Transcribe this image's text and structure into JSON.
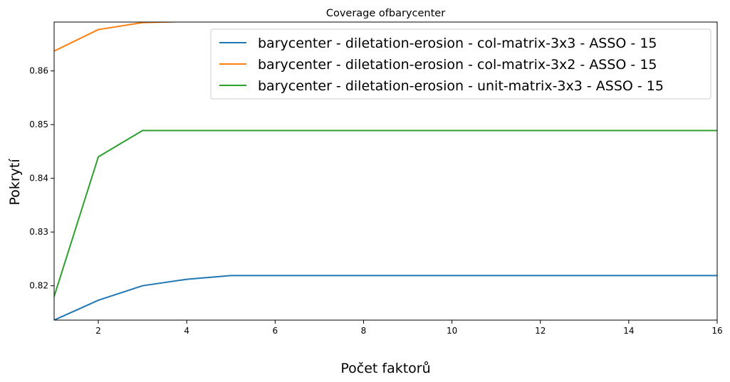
{
  "chart_data": {
    "type": "line",
    "title": "Coverage ofbarycenter",
    "xlabel": "Počet faktorů",
    "ylabel": "Pokrytí",
    "xlim": [
      1,
      16
    ],
    "ylim": [
      0.8136,
      0.8691
    ],
    "xticks": [
      2,
      4,
      6,
      8,
      10,
      12,
      14,
      16
    ],
    "yticks": [
      0.82,
      0.83,
      0.84,
      0.85,
      0.86
    ],
    "ytick_labels": [
      "0.82",
      "0.83",
      "0.84",
      "0.85",
      "0.86"
    ],
    "grid": false,
    "legend_position": "top-right",
    "x": [
      1,
      2,
      3,
      4,
      5,
      6,
      7,
      8,
      9,
      10,
      11,
      12,
      13,
      14,
      15,
      16
    ],
    "series": [
      {
        "name": "barycenter - diletation-erosion - col-matrix-3x3 - ASSO - 15",
        "color": "#1f77b4",
        "values": [
          0.8136,
          0.8173,
          0.82,
          0.8212,
          0.8219,
          0.8219,
          0.8219,
          0.8219,
          0.8219,
          0.8219,
          0.8219,
          0.8219,
          0.8219,
          0.8219,
          0.8219,
          0.8219
        ]
      },
      {
        "name": "barycenter - diletation-erosion - col-matrix-3x2 - ASSO - 15",
        "color": "#ff7f0e",
        "values": [
          0.8637,
          0.8677,
          0.869,
          0.8692,
          0.8692,
          0.8692,
          0.8692,
          0.8692,
          0.8692,
          0.8692,
          0.8692,
          0.8692,
          0.8692,
          0.8692,
          0.8692,
          0.8692
        ]
      },
      {
        "name": "barycenter - diletation-erosion - unit-matrix-3x3 - ASSO - 15",
        "color": "#2ca02c",
        "values": [
          0.818,
          0.844,
          0.8489,
          0.8489,
          0.8489,
          0.8489,
          0.8489,
          0.8489,
          0.8489,
          0.8489,
          0.8489,
          0.8489,
          0.8489,
          0.8489,
          0.8489,
          0.8489
        ]
      }
    ]
  }
}
